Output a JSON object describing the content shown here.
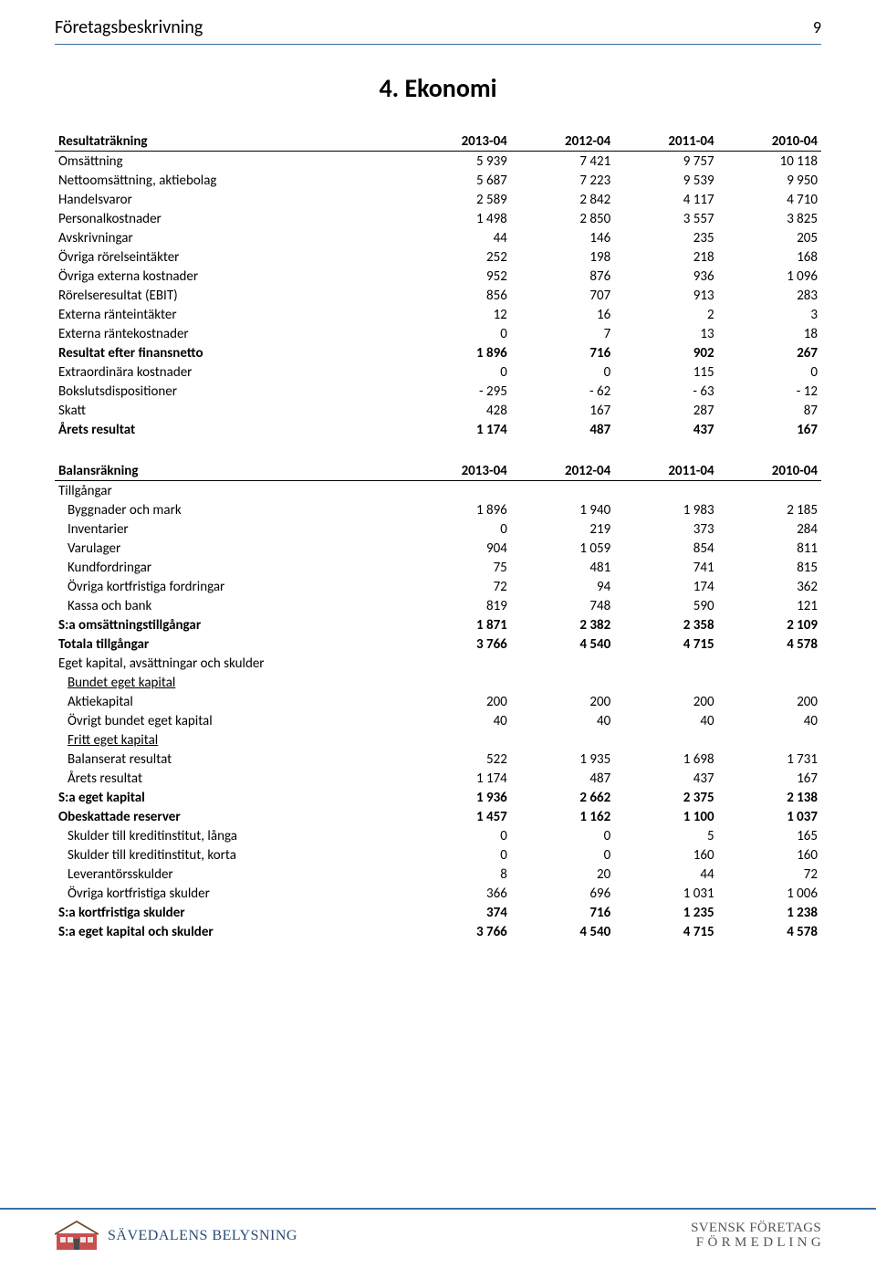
{
  "header": {
    "title": "Företagsbeskrivning",
    "page_number": "9"
  },
  "section_title": "4. Ekonomi",
  "income_statement": {
    "heading": "Resultaträkning",
    "years": [
      "2013-04",
      "2012-04",
      "2011-04",
      "2010-04"
    ],
    "rows": [
      {
        "label": "Omsättning",
        "values": [
          "5 939",
          "7 421",
          "9 757",
          "10 118"
        ]
      },
      {
        "label": "Nettoomsättning, aktiebolag",
        "values": [
          "5 687",
          "7 223",
          "9 539",
          "9 950"
        ]
      },
      {
        "label": "Handelsvaror",
        "values": [
          "2 589",
          "2 842",
          "4 117",
          "4 710"
        ]
      },
      {
        "label": "Personalkostnader",
        "values": [
          "1 498",
          "2 850",
          "3 557",
          "3 825"
        ]
      },
      {
        "label": "Avskrivningar",
        "values": [
          "44",
          "146",
          "235",
          "205"
        ]
      },
      {
        "label": "Övriga rörelseintäkter",
        "values": [
          "252",
          "198",
          "218",
          "168"
        ]
      },
      {
        "label": "Övriga externa kostnader",
        "values": [
          "952",
          "876",
          "936",
          "1 096"
        ]
      },
      {
        "label": "Rörelseresultat (EBIT)",
        "values": [
          "856",
          "707",
          "913",
          "283"
        ]
      },
      {
        "label": "Externa ränteintäkter",
        "values": [
          "12",
          "16",
          "2",
          "3"
        ]
      },
      {
        "label": "Externa räntekostnader",
        "values": [
          "0",
          "7",
          "13",
          "18"
        ]
      },
      {
        "label": "Resultat efter finansnetto",
        "values": [
          "1 896",
          "716",
          "902",
          "267"
        ],
        "bold": true
      },
      {
        "label": "Extraordinära kostnader",
        "values": [
          "0",
          "0",
          "115",
          "0"
        ]
      },
      {
        "label": "Bokslutsdispositioner",
        "values": [
          "-   295",
          "-   62",
          "-   63",
          "-   12"
        ]
      },
      {
        "label": "Skatt",
        "values": [
          "428",
          "167",
          "287",
          "87"
        ]
      },
      {
        "label": "Årets resultat",
        "values": [
          "1 174",
          "487",
          "437",
          "167"
        ],
        "bold": true
      }
    ]
  },
  "balance_sheet": {
    "heading": "Balansräkning",
    "years": [
      "2013-04",
      "2012-04",
      "2011-04",
      "2010-04"
    ],
    "rows": [
      {
        "label": "Tillgångar",
        "values": [
          "",
          "",
          "",
          ""
        ],
        "plain": true
      },
      {
        "label": "Byggnader och mark",
        "values": [
          "1 896",
          "1 940",
          "1 983",
          "2 185"
        ],
        "indent": true
      },
      {
        "label": "Inventarier",
        "values": [
          "0",
          "219",
          "373",
          "284"
        ],
        "indent": true
      },
      {
        "label": "Varulager",
        "values": [
          "904",
          "1 059",
          "854",
          "811"
        ],
        "indent": true
      },
      {
        "label": "Kundfordringar",
        "values": [
          "75",
          "481",
          "741",
          "815"
        ],
        "indent": true
      },
      {
        "label": "Övriga kortfristiga fordringar",
        "values": [
          "72",
          "94",
          "174",
          "362"
        ],
        "indent": true
      },
      {
        "label": "Kassa och bank",
        "values": [
          "819",
          "748",
          "590",
          "121"
        ],
        "indent": true
      },
      {
        "label": "S:a omsättningstillgångar",
        "values": [
          "1 871",
          "2 382",
          "2 358",
          "2 109"
        ],
        "bold": true
      },
      {
        "label": "Totala tillgångar",
        "values": [
          "3 766",
          "4 540",
          "4 715",
          "4 578"
        ],
        "bold": true
      },
      {
        "label": "Eget kapital, avsättningar och skulder",
        "values": [
          "",
          "",
          "",
          ""
        ],
        "plain": true
      },
      {
        "label": "Bundet eget kapital",
        "values": [
          "",
          "",
          "",
          ""
        ],
        "underline": true,
        "indent": true
      },
      {
        "label": "Aktiekapital",
        "values": [
          "200",
          "200",
          "200",
          "200"
        ],
        "indent": true
      },
      {
        "label": "Övrigt bundet eget kapital",
        "values": [
          "40",
          "40",
          "40",
          "40"
        ],
        "indent": true
      },
      {
        "label": "Fritt eget kapital",
        "values": [
          "",
          "",
          "",
          ""
        ],
        "underline": true,
        "indent": true
      },
      {
        "label": "Balanserat resultat",
        "values": [
          "522",
          "1 935",
          "1 698",
          "1 731"
        ],
        "indent": true
      },
      {
        "label": "Årets resultat",
        "values": [
          "1 174",
          "487",
          "437",
          "167"
        ],
        "indent": true
      },
      {
        "label": "S:a eget kapital",
        "values": [
          "1 936",
          "2 662",
          "2 375",
          "2 138"
        ],
        "bold": true
      },
      {
        "label": "Obeskattade reserver",
        "values": [
          "1 457",
          "1 162",
          "1 100",
          "1 037"
        ],
        "bold": true
      },
      {
        "label": "Skulder till kreditinstitut, långa",
        "values": [
          "0",
          "0",
          "5",
          "165"
        ],
        "indent": true
      },
      {
        "label": "Skulder till kreditinstitut, korta",
        "values": [
          "0",
          "0",
          "160",
          "160"
        ],
        "indent": true
      },
      {
        "label": "Leverantörsskulder",
        "values": [
          "8",
          "20",
          "44",
          "72"
        ],
        "indent": true
      },
      {
        "label": "Övriga kortfristiga skulder",
        "values": [
          "366",
          "696",
          "1 031",
          "1 006"
        ],
        "indent": true
      },
      {
        "label": "S:a kortfristiga skulder",
        "values": [
          "374",
          "716",
          "1 235",
          "1 238"
        ],
        "bold": true
      },
      {
        "label": "S:a eget kapital och skulder",
        "values": [
          "3 766",
          "4 540",
          "4 715",
          "4 578"
        ],
        "bold": true
      }
    ]
  },
  "footer": {
    "left_brand": "SÄVEDALENS BELYSNING",
    "right_line1": "SVENSK FÖRETAGS",
    "right_line2": "F Ö R M E D L I N G"
  },
  "colors": {
    "accent": "#3a6ea5",
    "text": "#000000",
    "footer_brand_left": "#2a4a7a",
    "footer_brand_right": "#555555",
    "background": "#ffffff"
  }
}
